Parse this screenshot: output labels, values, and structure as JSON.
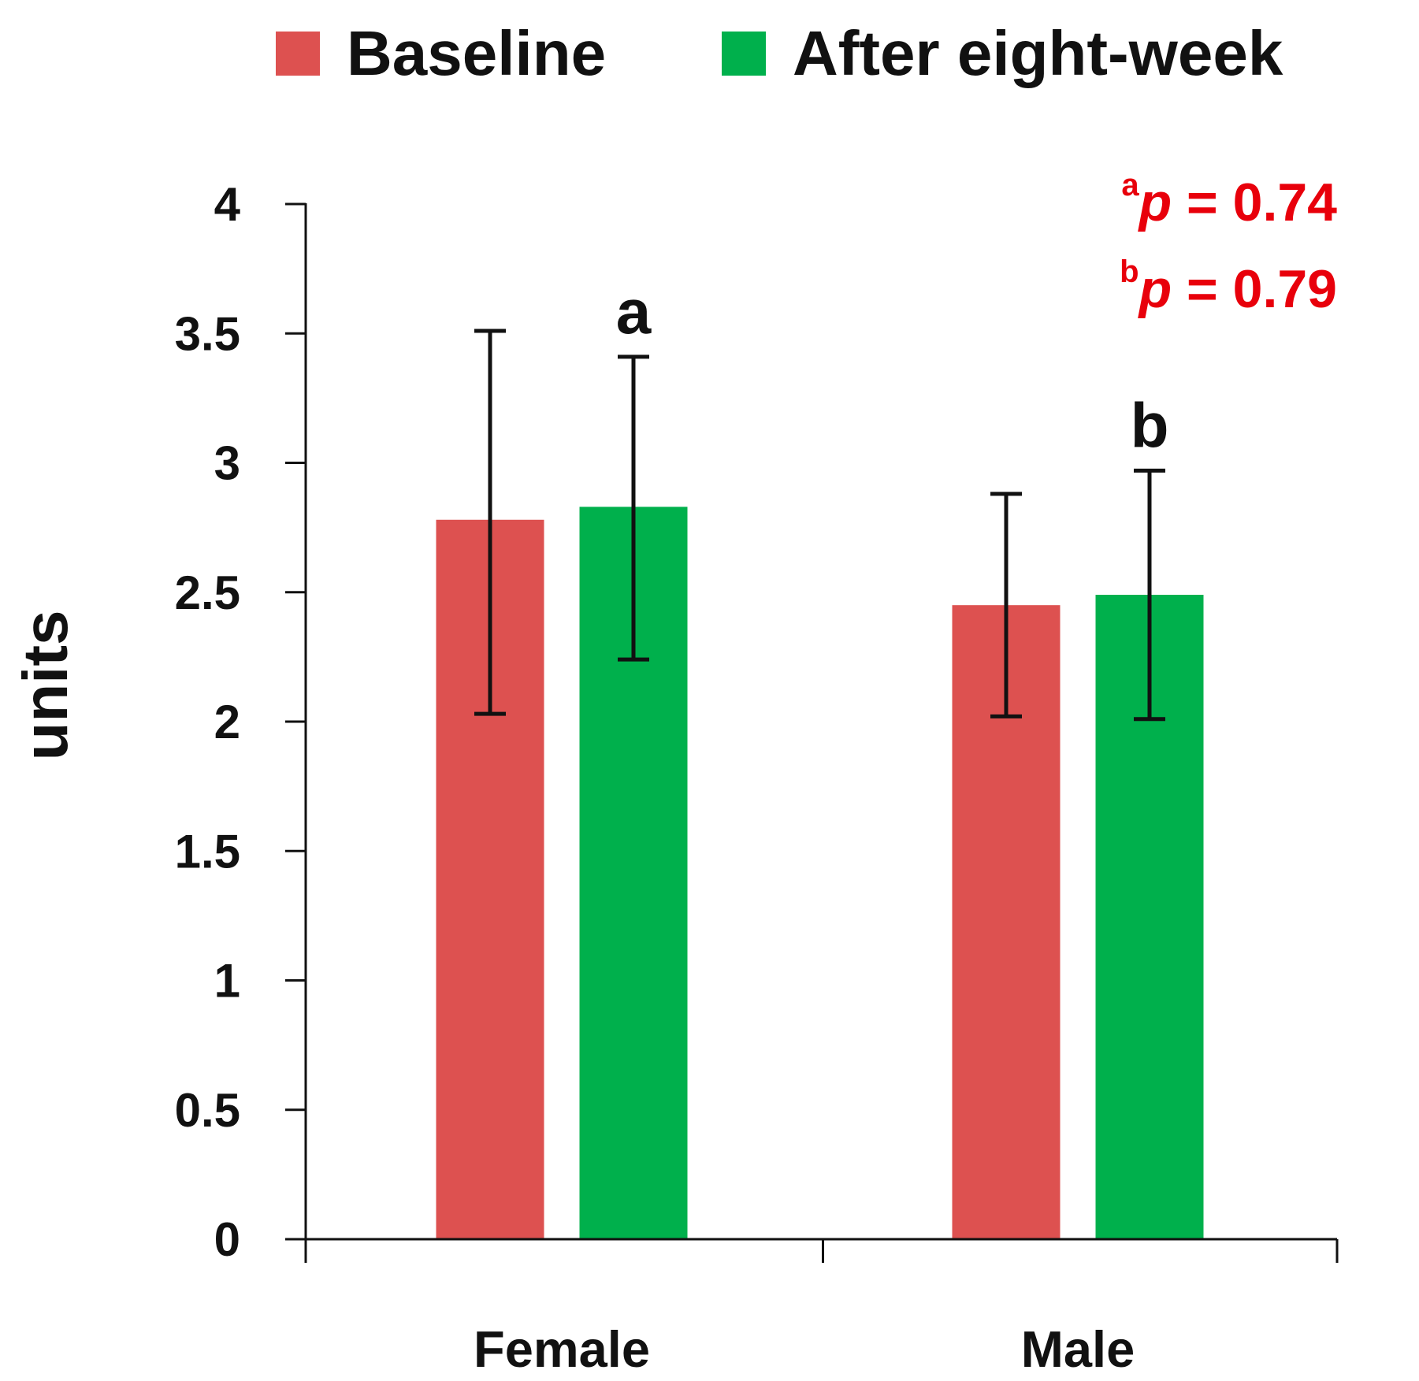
{
  "chart_data": {
    "type": "bar",
    "title": "",
    "xlabel": "",
    "ylabel": "units",
    "ylim": [
      0,
      4
    ],
    "yticks": [
      0,
      0.5,
      1,
      1.5,
      2,
      2.5,
      3,
      3.5,
      4
    ],
    "ytick_labels": [
      "0",
      "0.5",
      "1",
      "1.5",
      "2",
      "2.5",
      "3",
      "3.5",
      "4"
    ],
    "categories": [
      "Female",
      "Male"
    ],
    "series": [
      {
        "name": "Baseline",
        "color": "#dd5150",
        "values": [
          2.78,
          2.45
        ],
        "error_low": [
          2.03,
          2.02
        ],
        "error_high": [
          3.51,
          2.88
        ]
      },
      {
        "name": "After eight-week",
        "color": "#00b04c",
        "values": [
          2.83,
          2.49
        ],
        "error_low": [
          2.24,
          2.01
        ],
        "error_high": [
          3.41,
          2.97
        ]
      }
    ],
    "bar_annotations": [
      {
        "series": 1,
        "category": 0,
        "label": "a"
      },
      {
        "series": 1,
        "category": 1,
        "label": "b"
      }
    ],
    "pvalues": [
      {
        "sup": "a",
        "italic": "p",
        "text": " = 0.74"
      },
      {
        "sup": "b",
        "italic": "p",
        "text": " = 0.79"
      }
    ],
    "pvalue_color": "#e8000b",
    "legend_position": "top"
  }
}
